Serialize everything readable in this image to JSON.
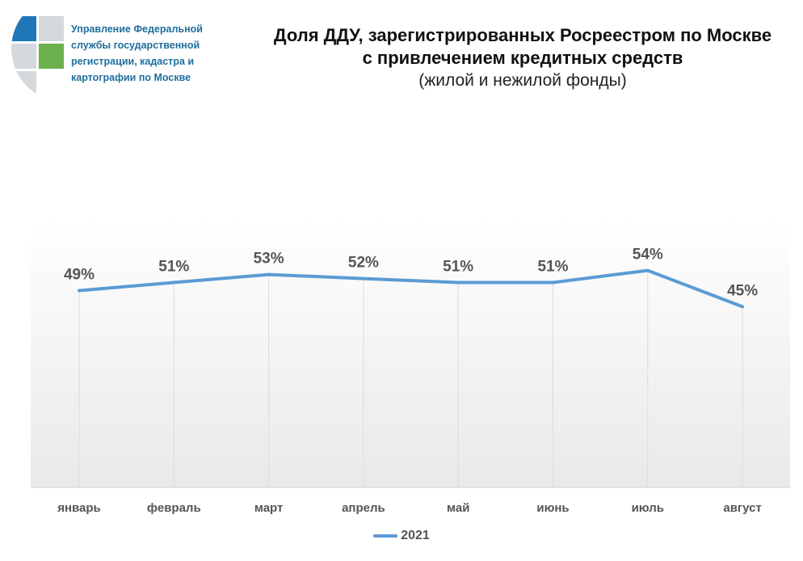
{
  "logo": {
    "lines": [
      "Управление Федеральной",
      "службы государственной",
      "регистрации, кадастра и",
      "картографии по Москве"
    ],
    "colors": {
      "blue": "#1f77b8",
      "green": "#6ab04c",
      "gray": "#d5d8dc"
    }
  },
  "header": {
    "title_line1": "Доля ДДУ, зарегистрированных Росреестром по Москве",
    "title_line2": "с привлечением кредитных средств",
    "subtitle": "(жилой и нежилой фонды)"
  },
  "chart_data": {
    "type": "line",
    "categories": [
      "январь",
      "февраль",
      "март",
      "апрель",
      "май",
      "июнь",
      "июль",
      "август"
    ],
    "series": [
      {
        "name": "2021",
        "values": [
          49,
          51,
          53,
          52,
          51,
          51,
          54,
          45
        ],
        "color": "#5b9bd5"
      }
    ],
    "data_labels": [
      "49%",
      "51%",
      "53%",
      "52%",
      "51%",
      "51%",
      "54%",
      "45%"
    ],
    "ylim": [
      0,
      100
    ],
    "grid": "vertical",
    "legend": "bottom-center"
  }
}
